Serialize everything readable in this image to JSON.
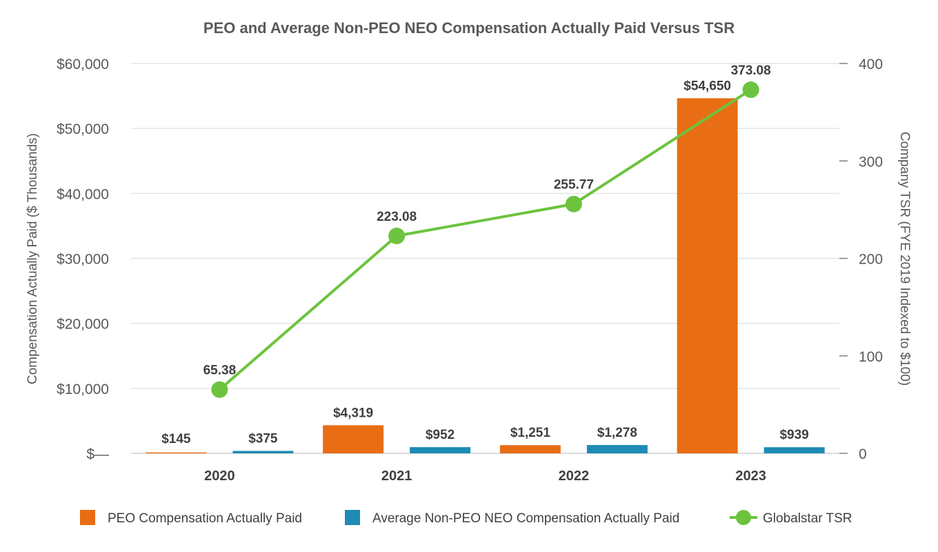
{
  "chart_data": {
    "type": "bar",
    "title": "PEO and Average Non-PEO NEO Compensation Actually Paid Versus TSR",
    "categories": [
      "2020",
      "2021",
      "2022",
      "2023"
    ],
    "series": [
      {
        "name": "PEO Compensation Actually Paid",
        "type": "bar",
        "axis": "left",
        "color": "#E96D14",
        "values": [
          145,
          4319,
          1251,
          54650
        ],
        "labels": [
          "$145",
          "$4,319",
          "$1,251",
          "$54,650"
        ]
      },
      {
        "name": "Average Non-PEO NEO Compensation Actually Paid",
        "type": "bar",
        "axis": "left",
        "color": "#1E8BB5",
        "values": [
          375,
          952,
          1278,
          939
        ],
        "labels": [
          "$375",
          "$952",
          "$1,278",
          "$939"
        ]
      },
      {
        "name": "Globalstar TSR",
        "type": "line",
        "axis": "right",
        "color": "#6CC33D",
        "values": [
          65.38,
          223.08,
          255.77,
          373.08
        ],
        "labels": [
          "65.38",
          "223.08",
          "255.77",
          "373.08"
        ]
      }
    ],
    "y_left": {
      "label": "Compensation Actually Paid ($ Thousands)",
      "range": [
        0,
        60000
      ],
      "ticks": [
        0,
        10000,
        20000,
        30000,
        40000,
        50000,
        60000
      ],
      "tick_labels": [
        "$—",
        "$10,000",
        "$20,000",
        "$30,000",
        "$40,000",
        "$50,000",
        "$60,000"
      ]
    },
    "y_right": {
      "label": "Company TSR (FYE 2019 Indexed to $100)",
      "range": [
        0,
        400
      ],
      "ticks": [
        0,
        100,
        200,
        300,
        400
      ],
      "tick_labels": [
        "0",
        "100",
        "200",
        "300",
        "400"
      ]
    },
    "grid": true,
    "legend": "bottom"
  }
}
